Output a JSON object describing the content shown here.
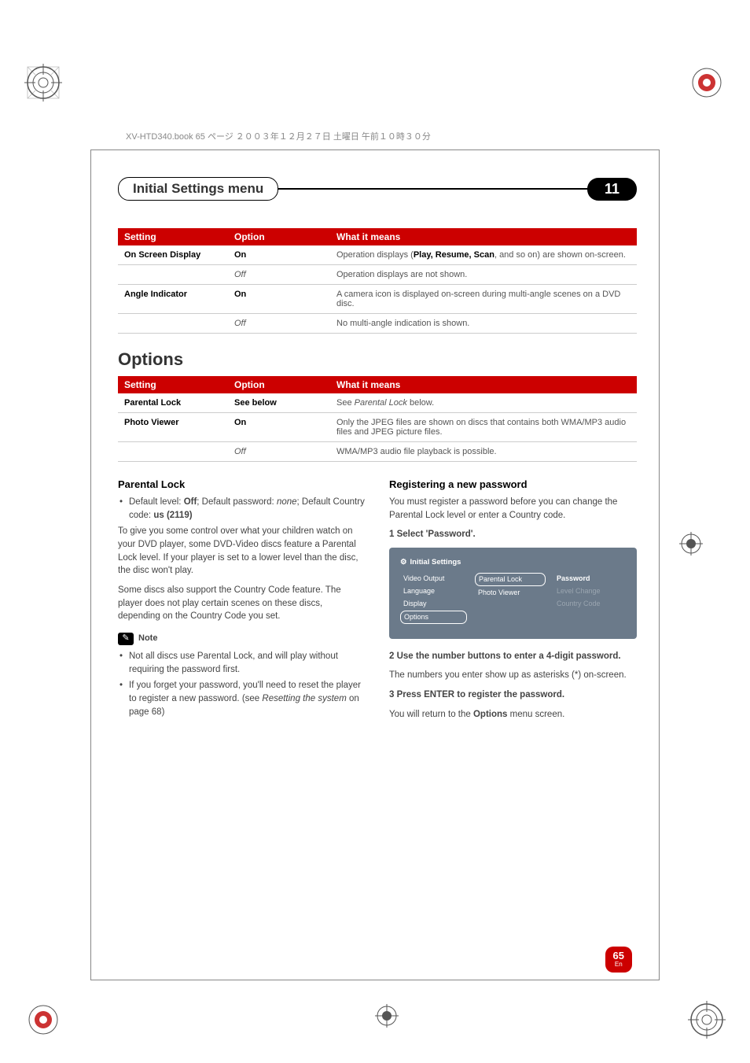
{
  "header_note": "XV-HTD340.book 65 ページ ２００３年１２月２７日 土曜日 午前１０時３０分",
  "title_bar": {
    "title": "Initial Settings menu",
    "chapter": "11"
  },
  "table1": {
    "headers": [
      "Setting",
      "Option",
      "What it means"
    ],
    "rows": [
      {
        "setting": "On Screen Display",
        "option": "On",
        "option_bold": true,
        "meaning_pre": "Operation displays (",
        "meaning_bold": "Play, Resume, Scan",
        "meaning_post": ", and so on) are shown on-screen."
      },
      {
        "setting": "",
        "option": "Off",
        "option_italic": true,
        "meaning": "Operation displays are not shown."
      },
      {
        "setting": "Angle Indicator",
        "option": "On",
        "option_bold": true,
        "meaning": "A camera icon is displayed on-screen during multi-angle scenes on a DVD disc."
      },
      {
        "setting": "",
        "option": "Off",
        "option_italic": true,
        "meaning": "No multi-angle indication is shown."
      }
    ]
  },
  "section_options": "Options",
  "table2": {
    "headers": [
      "Setting",
      "Option",
      "What it means"
    ],
    "rows": [
      {
        "setting": "Parental Lock",
        "option": "See below",
        "option_bold": true,
        "meaning_pre": "See ",
        "meaning_italic": "Parental Lock",
        "meaning_post": " below."
      },
      {
        "setting": "Photo Viewer",
        "option": "On",
        "option_bold": true,
        "meaning": "Only the JPEG files are shown on discs that contains both WMA/MP3 audio files and JPEG picture files."
      },
      {
        "setting": "",
        "option": "Off",
        "option_italic": true,
        "meaning": "WMA/MP3 audio file playback is possible."
      }
    ]
  },
  "left_col": {
    "heading": "Parental Lock",
    "bullet1_pre": "Default level: ",
    "bullet1_b1": "Off",
    "bullet1_mid": "; Default password: ",
    "bullet1_i": "none",
    "bullet1_mid2": "; Default Country code: ",
    "bullet1_b2": "us (2119)",
    "p1": "To give you some control over what your children watch on your DVD player, some DVD-Video discs feature a Parental Lock level. If your player is set to a lower level than the disc, the disc won't play.",
    "p2": "Some discs also support the Country Code feature. The player does not play certain scenes on these discs, depending on the Country Code you set.",
    "note_label": "Note",
    "note1": "Not all discs use Parental Lock, and will play without requiring the password first.",
    "note2_pre": "If you forget your password, you'll need to reset the player to register a new password. (see ",
    "note2_i": "Resetting the system",
    "note2_post": " on page 68)"
  },
  "right_col": {
    "heading": "Registering a new password",
    "p1": "You must register a password before you can change the Parental Lock level or enter a Country code.",
    "step1": "1    Select 'Password'.",
    "ui": {
      "title": "Initial Settings",
      "left": [
        "Video Output",
        "Language",
        "Display",
        "Options"
      ],
      "left_selected": 3,
      "mid": [
        "Parental Lock",
        "Photo Viewer"
      ],
      "mid_selected": 0,
      "right": [
        "Password",
        "Level Change",
        "Country Code"
      ],
      "right_bold": 0
    },
    "step2": "2    Use the number buttons to enter a 4-digit password.",
    "p2": "The numbers you enter show up as asterisks (*) on-screen.",
    "step3": "3    Press ENTER to register the password.",
    "p3_pre": "You will return to the ",
    "p3_b": "Options",
    "p3_post": " menu screen."
  },
  "page": {
    "num": "65",
    "lang": "En"
  }
}
